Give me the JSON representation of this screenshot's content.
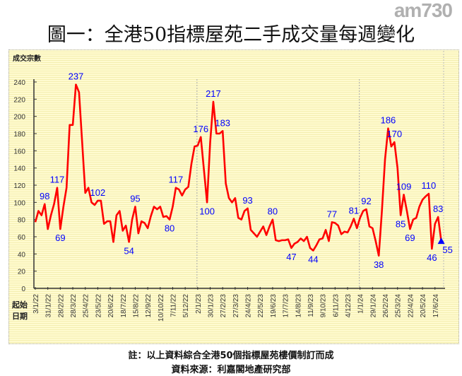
{
  "title": "圖一：全港50指標屋苑二手成交量每週變化",
  "logo": "am730",
  "footnotes": [
    "註：以上資料綜合全港50個指標屋苑樓價制訂而成",
    "資料來源：利嘉閣地產研究部"
  ],
  "chart_data": {
    "type": "line",
    "ylabel": "成交宗數",
    "xlabel": "起始日期",
    "ylim": [
      0,
      240
    ],
    "yticks": [
      0,
      20,
      40,
      60,
      80,
      100,
      120,
      140,
      160,
      180,
      200,
      220,
      240
    ],
    "xtick_every_weeks": 4,
    "xticks": [
      "3/1/22",
      "31/1/22",
      "28/2/22",
      "28/3/22",
      "25/4/22",
      "23/5/22",
      "20/6/22",
      "18/7/22",
      "15/8/22",
      "12/9/22",
      "10/10/22",
      "7/11/22",
      "5/12/22",
      "2/1/23",
      "30/1/23",
      "27/2/23",
      "27/3/23",
      "24/4/23",
      "22/5/23",
      "19/6/23",
      "17/7/23",
      "14/8/23",
      "11/9/23",
      "9/10/23",
      "6/11/23",
      "4/12/23",
      "1/1/24",
      "29/1/24",
      "26/2/24",
      "25/3/24",
      "22/4/24",
      "20/5/24",
      "17/6/24"
    ],
    "series": [
      {
        "name": "成交宗數",
        "color": "#ff0000",
        "values": [
          77,
          90,
          85,
          98,
          69,
          85,
          98,
          117,
          69,
          95,
          117,
          190,
          190,
          237,
          228,
          170,
          111,
          117,
          100,
          97,
          102,
          102,
          75,
          78,
          78,
          54,
          85,
          90,
          67,
          73,
          54,
          80,
          95,
          64,
          78,
          76,
          70,
          84,
          95,
          92,
          95,
          83,
          84,
          80,
          95,
          117,
          115,
          108,
          115,
          118,
          145,
          165,
          166,
          176,
          138,
          100,
          170,
          217,
          180,
          180,
          183,
          122,
          105,
          100,
          105,
          82,
          80,
          90,
          93,
          68,
          64,
          60,
          66,
          72,
          62,
          72,
          80,
          56,
          55,
          56,
          56,
          57,
          47,
          52,
          54,
          58,
          55,
          60,
          47,
          44,
          50,
          57,
          58,
          68,
          55,
          77,
          76,
          73,
          63,
          66,
          65,
          72,
          81,
          70,
          82,
          90,
          92,
          72,
          70,
          55,
          38,
          90,
          150,
          186,
          165,
          170,
          140,
          85,
          109,
          90,
          69,
          80,
          82,
          95,
          103,
          107,
          110,
          46,
          75,
          83,
          55
        ]
      }
    ],
    "annotations": [
      {
        "index": 3,
        "label": "98",
        "pos": "above"
      },
      {
        "index": 7,
        "label": "117",
        "pos": "above"
      },
      {
        "index": 8,
        "label": "69",
        "pos": "below"
      },
      {
        "index": 13,
        "label": "237",
        "pos": "above"
      },
      {
        "index": 20,
        "label": "102",
        "pos": "above"
      },
      {
        "index": 30,
        "label": "54",
        "pos": "below"
      },
      {
        "index": 32,
        "label": "95",
        "pos": "above"
      },
      {
        "index": 43,
        "label": "80",
        "pos": "below"
      },
      {
        "index": 45,
        "label": "117",
        "pos": "above"
      },
      {
        "index": 53,
        "label": "176",
        "pos": "above"
      },
      {
        "index": 55,
        "label": "100",
        "pos": "below"
      },
      {
        "index": 57,
        "label": "217",
        "pos": "above"
      },
      {
        "index": 60,
        "label": "183",
        "pos": "above"
      },
      {
        "index": 68,
        "label": "93",
        "pos": "above"
      },
      {
        "index": 76,
        "label": "80",
        "pos": "above"
      },
      {
        "index": 82,
        "label": "47",
        "pos": "below"
      },
      {
        "index": 89,
        "label": "44",
        "pos": "below"
      },
      {
        "index": 95,
        "label": "77",
        "pos": "above"
      },
      {
        "index": 102,
        "label": "81",
        "pos": "above"
      },
      {
        "index": 106,
        "label": "92",
        "pos": "above"
      },
      {
        "index": 110,
        "label": "38",
        "pos": "below"
      },
      {
        "index": 113,
        "label": "186",
        "pos": "above"
      },
      {
        "index": 115,
        "label": "170",
        "pos": "above"
      },
      {
        "index": 117,
        "label": "85",
        "pos": "below"
      },
      {
        "index": 118,
        "label": "109",
        "pos": "above"
      },
      {
        "index": 120,
        "label": "69",
        "pos": "below"
      },
      {
        "index": 126,
        "label": "110",
        "pos": "above"
      },
      {
        "index": 127,
        "label": "46",
        "pos": "below"
      },
      {
        "index": 129,
        "label": "83",
        "pos": "above"
      },
      {
        "index": 130,
        "label": "55",
        "pos": "below"
      }
    ],
    "label_color": "#0000ff",
    "last_point_marker": "triangle",
    "year_gridlines_at": [
      "2/1/23",
      "1/1/24"
    ]
  }
}
